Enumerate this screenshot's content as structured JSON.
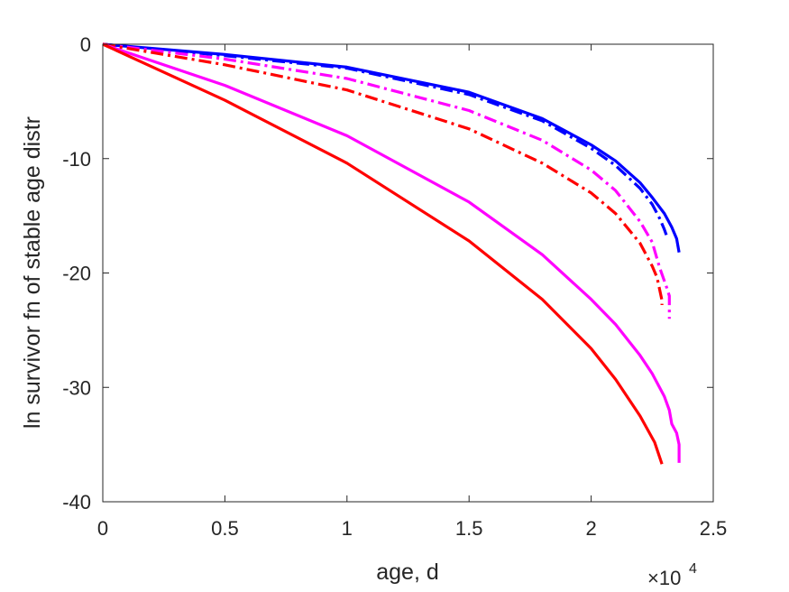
{
  "chart_data": {
    "type": "line",
    "xlabel": "age, d",
    "ylabel": "ln survivor fn of stable age distr",
    "x_multiplier_base": "×10",
    "x_multiplier_exp": "4",
    "xlim": [
      0,
      25000
    ],
    "ylim": [
      -40,
      0
    ],
    "xticks": [
      0,
      5000,
      10000,
      15000,
      20000,
      25000
    ],
    "xtick_labels": [
      "0",
      "0.5",
      "1",
      "1.5",
      "2",
      "2.5"
    ],
    "yticks": [
      0,
      -10,
      -20,
      -30,
      -40
    ],
    "ytick_labels": [
      "0",
      "-10",
      "-20",
      "-30",
      "-40"
    ],
    "grid": false,
    "series": [
      {
        "color": "#0000ff",
        "style": "solid",
        "x": [
          0,
          5000,
          10000,
          15000,
          18000,
          20000,
          21000,
          22000,
          22500,
          23000,
          23300,
          23500,
          23600
        ],
        "y": [
          0,
          -0.9,
          -2.0,
          -4.2,
          -6.5,
          -8.8,
          -10.2,
          -12.1,
          -13.4,
          -14.8,
          -16.0,
          -17.0,
          -18.2
        ]
      },
      {
        "color": "#0000ff",
        "style": "dashdot",
        "x": [
          0,
          5000,
          10000,
          15000,
          18000,
          20000,
          21000,
          22000,
          22500,
          22800,
          23000,
          23100
        ],
        "y": [
          0,
          -1.0,
          -2.1,
          -4.4,
          -6.7,
          -9.1,
          -10.6,
          -12.6,
          -14.0,
          -15.2,
          -16.2,
          -16.8
        ]
      },
      {
        "color": "#ff00ff",
        "style": "dashdot",
        "x": [
          0,
          5000,
          10000,
          15000,
          18000,
          20000,
          21000,
          22000,
          22500,
          22800,
          23000,
          23100,
          23200,
          23200
        ],
        "y": [
          0,
          -1.3,
          -3.0,
          -5.8,
          -8.4,
          -11.0,
          -12.8,
          -15.5,
          -17.3,
          -19.5,
          -20.7,
          -21.3,
          -22.0,
          -24.0
        ]
      },
      {
        "color": "#ff0000",
        "style": "dashdot",
        "x": [
          0,
          5000,
          10000,
          15000,
          18000,
          20000,
          21000,
          22000,
          22500,
          22700,
          22800,
          22900,
          22900
        ],
        "y": [
          0,
          -1.8,
          -4.0,
          -7.4,
          -10.4,
          -13.0,
          -14.8,
          -17.4,
          -19.4,
          -20.4,
          -21.4,
          -22.4,
          -22.8
        ]
      },
      {
        "color": "#ff00ff",
        "style": "solid",
        "x": [
          0,
          5000,
          10000,
          15000,
          18000,
          20000,
          21000,
          22000,
          22500,
          23000,
          23200,
          23300,
          23500,
          23600,
          23600
        ],
        "y": [
          0,
          -3.6,
          -8.0,
          -13.8,
          -18.4,
          -22.3,
          -24.5,
          -27.2,
          -28.8,
          -30.8,
          -32.0,
          -33.2,
          -34.0,
          -35.0,
          -36.6
        ]
      },
      {
        "color": "#ff0000",
        "style": "solid",
        "x": [
          0,
          5000,
          10000,
          15000,
          18000,
          20000,
          21000,
          22000,
          22600,
          22900
        ],
        "y": [
          0,
          -4.9,
          -10.4,
          -17.2,
          -22.3,
          -26.6,
          -29.3,
          -32.5,
          -34.8,
          -36.7
        ]
      }
    ]
  }
}
